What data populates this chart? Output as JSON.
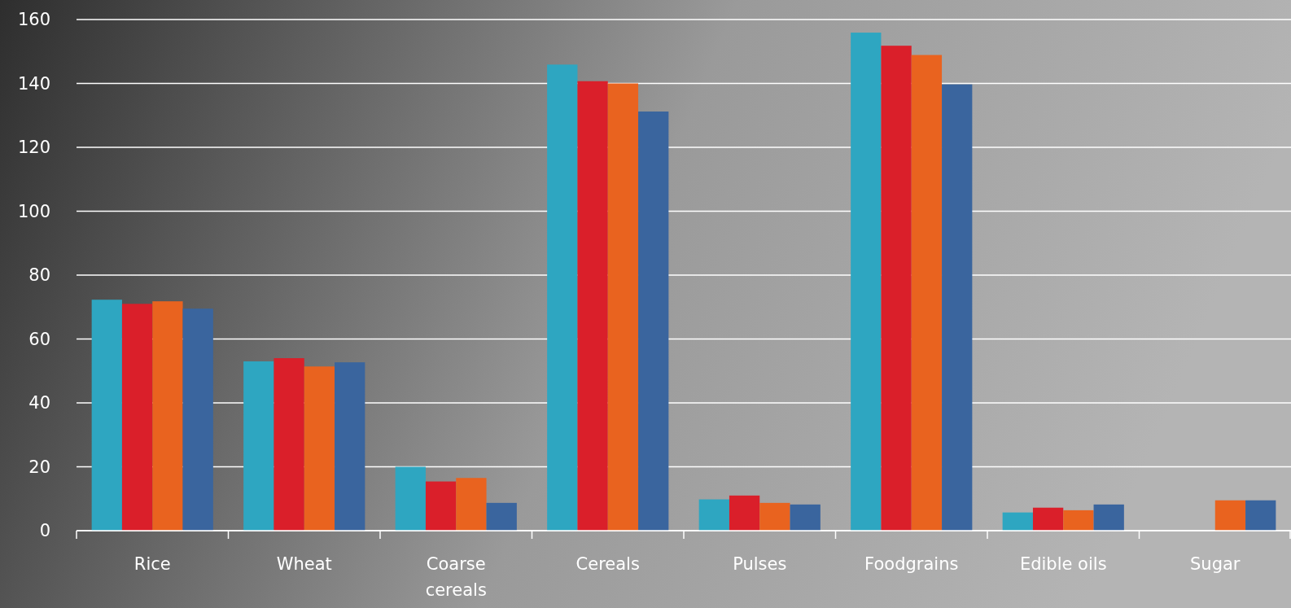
{
  "chart_data": {
    "type": "bar",
    "categories": [
      "Rice",
      "Wheat",
      "Coarse cereals",
      "Cereals",
      "Pulses",
      "Foodgrains",
      "Edible oils",
      "Sugar"
    ],
    "series": [
      {
        "color": "#2ea6c1",
        "values": [
          72.3,
          53,
          20,
          145.9,
          9.8,
          155.9,
          5.7,
          null
        ]
      },
      {
        "color": "#da1f2a",
        "values": [
          71,
          54,
          15.4,
          140.7,
          11,
          151.8,
          7.2,
          null
        ]
      },
      {
        "color": "#e9631f",
        "values": [
          71.8,
          51.4,
          16.5,
          140,
          8.7,
          148.9,
          6.4,
          9.5
        ]
      },
      {
        "color": "#3a659e",
        "values": [
          69.5,
          52.7,
          8.7,
          131.2,
          8.2,
          139.7,
          8.2,
          9.5
        ]
      }
    ],
    "ylim": [
      0,
      160
    ],
    "yticks": [
      0,
      20,
      40,
      60,
      80,
      100,
      120,
      140,
      160
    ],
    "grid": "y"
  }
}
